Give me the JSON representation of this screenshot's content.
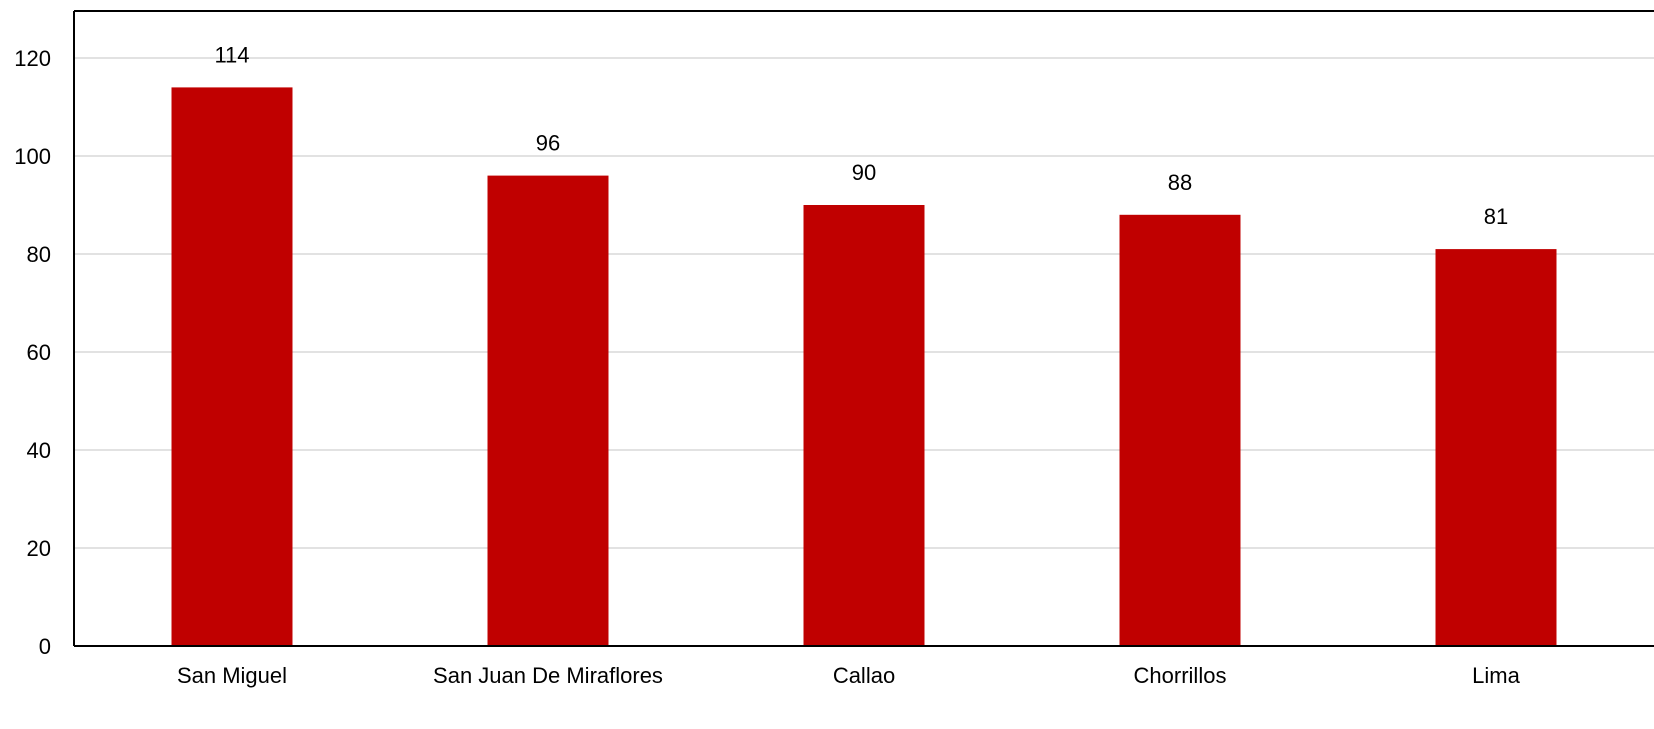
{
  "chart_data": {
    "type": "bar",
    "title": "",
    "xlabel": "",
    "ylabel": "",
    "categories": [
      "San Miguel",
      "San Juan De Miraflores",
      "Callao",
      "Chorrillos",
      "Lima"
    ],
    "values": [
      114,
      96,
      90,
      88,
      81
    ],
    "data_labels": [
      "114",
      "96",
      "90",
      "88",
      "81"
    ],
    "ylim": [
      0,
      120
    ],
    "yticks": [
      0,
      20,
      40,
      60,
      80,
      100,
      120
    ],
    "ytick_labels": [
      "0",
      "20",
      "40",
      "60",
      "80",
      "100",
      "120"
    ],
    "grid": true,
    "legend": "none",
    "colors": {
      "bar": "#c00000",
      "grid": "#d9d9d9",
      "axis": "#000000",
      "text": "#000000"
    }
  }
}
